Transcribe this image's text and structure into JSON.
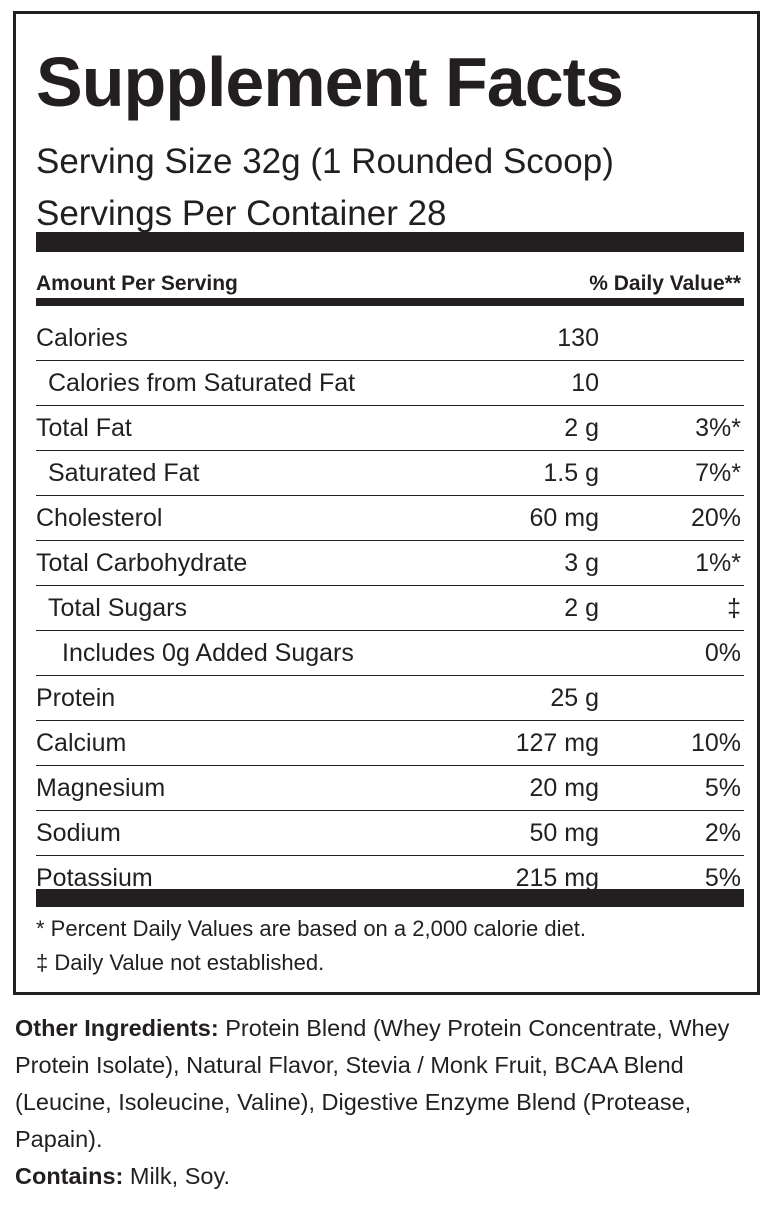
{
  "title": "Supplement Facts",
  "serving_size": "Serving Size 32g (1 Rounded Scoop)",
  "servings_per_container": "Servings Per Container  28",
  "header": {
    "left": "Amount Per Serving",
    "right": "% Daily Value**"
  },
  "rows": [
    {
      "name": "Calories",
      "amount": "130"
    },
    {
      "name": "Calories from Saturated Fat",
      "amount": "10"
    },
    {
      "name": "Total Fat",
      "amount": "2 g",
      "dv": "3%*"
    },
    {
      "name": "Saturated Fat",
      "amount": "1.5 g",
      "dv": "7%*"
    },
    {
      "name": "Cholesterol",
      "amount": "60 mg",
      "dv": "20%"
    },
    {
      "name": "Total Carbohydrate",
      "amount": "3 g",
      "dv": "1%*"
    },
    {
      "name": "Total Sugars",
      "amount": "2 g",
      "dv": "‡"
    },
    {
      "name": "Includes 0g Added Sugars",
      "dv": "0%"
    },
    {
      "name": "Protein",
      "amount": "25 g"
    },
    {
      "name": "Calcium",
      "amount": "127 mg",
      "dv": "10%"
    },
    {
      "name": "Magnesium",
      "amount": "20 mg",
      "dv": "5%"
    },
    {
      "name": "Sodium",
      "amount": "50 mg",
      "dv": "2%"
    },
    {
      "name": "Potassium",
      "amount": "215 mg",
      "dv": "5%"
    }
  ],
  "footnotes": [
    "* Percent Daily Values are based on a 2,000 calorie diet.",
    "‡ Daily Value not established."
  ],
  "other_ingredients": {
    "label": "Other Ingredients:",
    "text": "Protein Blend (Whey Protein Concentrate, Whey Protein Isolate), Natural Flavor, Stevia / Monk Fruit, BCAA Blend (Leucine, Isoleucine, Valine), Digestive Enzyme Blend (Protease, Papain)."
  },
  "contains": {
    "label": "Contains:",
    "text": "Milk, Soy."
  }
}
